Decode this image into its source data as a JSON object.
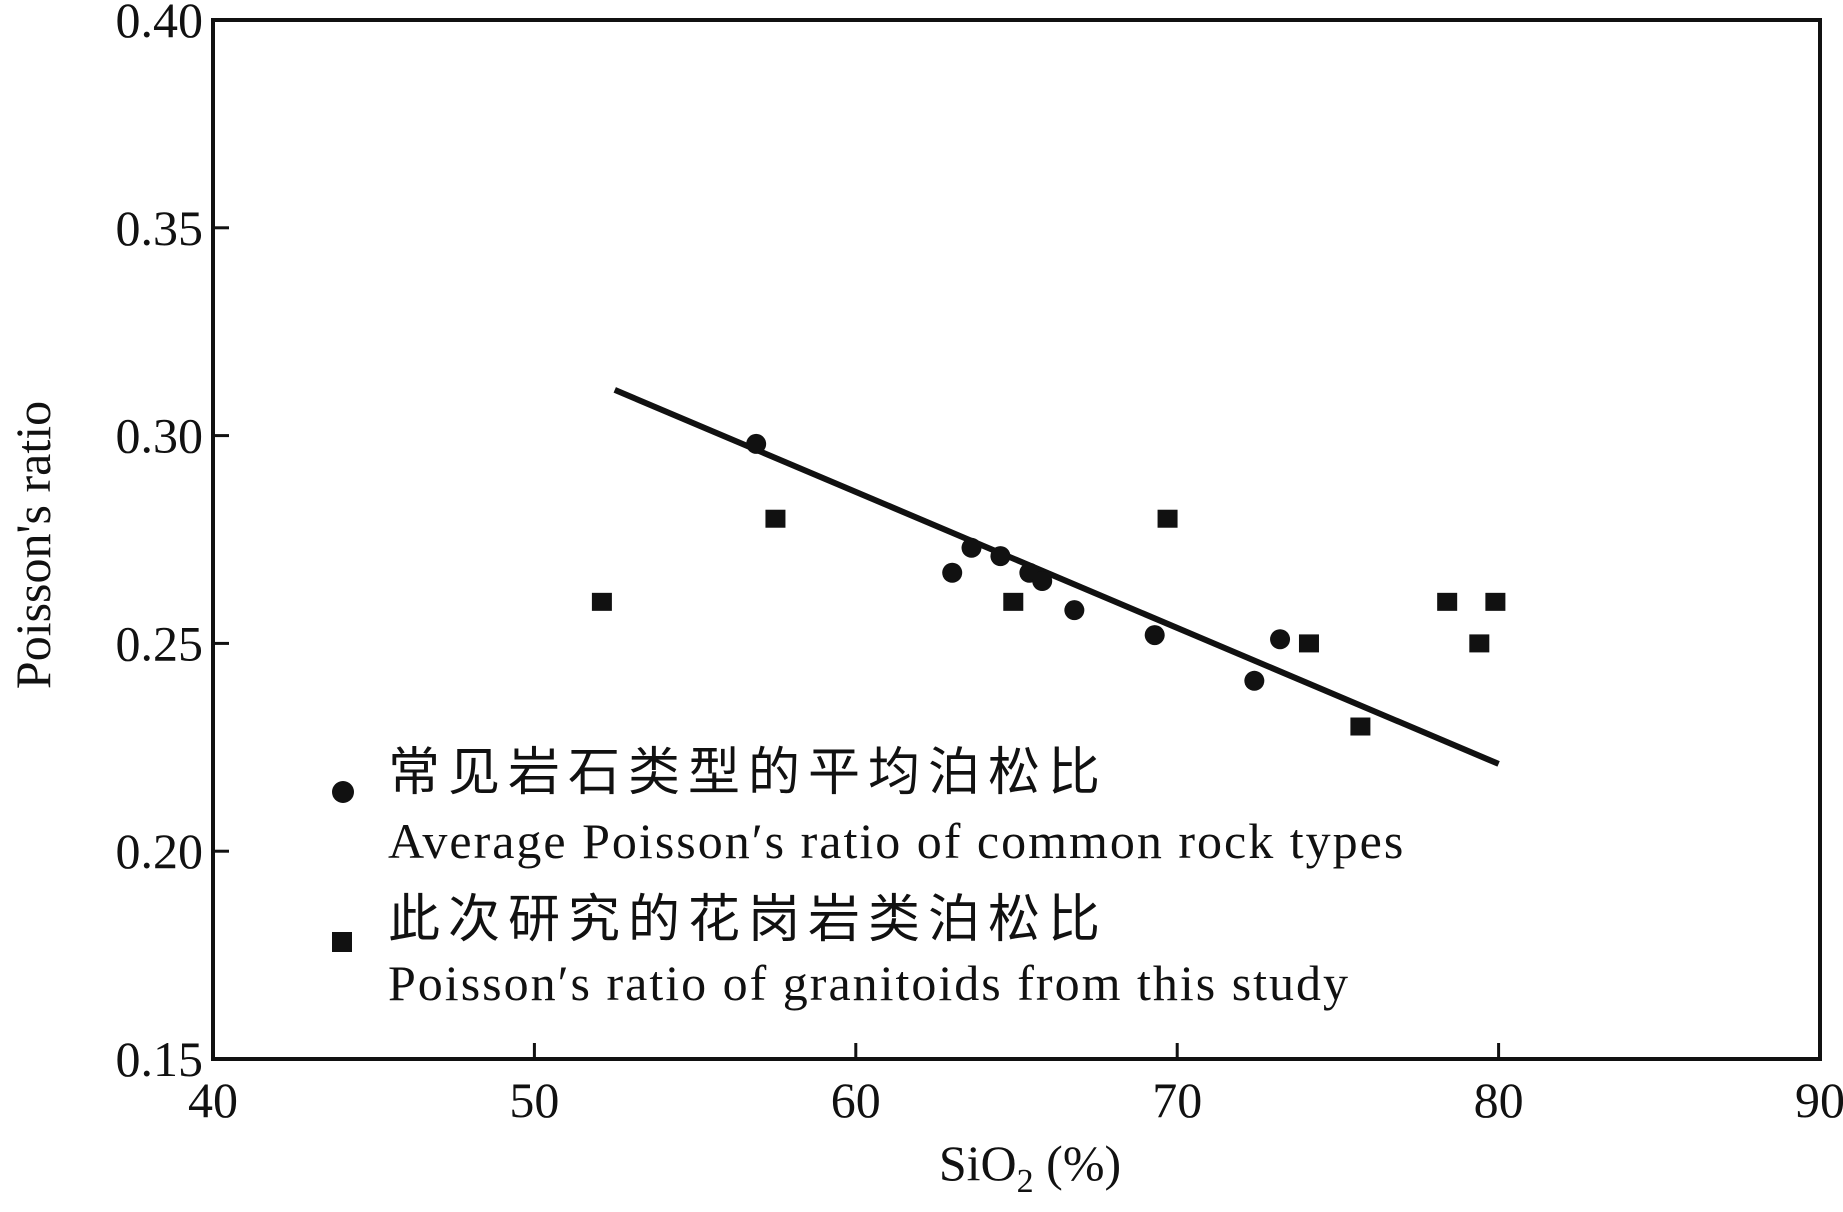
{
  "chart_data": {
    "type": "scatter",
    "title": "",
    "xlabel": {
      "prefix": "SiO",
      "subscript": "2",
      "suffix": " (%)"
    },
    "ylabel": "Poisson's ratio",
    "xlim": [
      40,
      90
    ],
    "ylim": [
      0.15,
      0.4
    ],
    "x_ticks": [
      40,
      50,
      60,
      70,
      80,
      90
    ],
    "y_ticks": [
      0.15,
      0.2,
      0.25,
      0.3,
      0.35,
      0.4
    ],
    "x_tick_labels": [
      "40",
      "50",
      "60",
      "70",
      "80",
      "90"
    ],
    "y_tick_labels": [
      "0.15",
      "0.20",
      "0.25",
      "0.30",
      "0.35",
      "0.40"
    ],
    "grid": false,
    "legend_position": "bottom-left inside plot",
    "series": [
      {
        "name": "常见岩石类型的平均泊松比 / Average Poisson′s ratio of common rock types",
        "marker": "circle",
        "color": "#111111",
        "points": [
          [
            56.9,
            0.298
          ],
          [
            63.0,
            0.267
          ],
          [
            63.6,
            0.273
          ],
          [
            64.5,
            0.271
          ],
          [
            65.4,
            0.267
          ],
          [
            65.8,
            0.265
          ],
          [
            66.8,
            0.258
          ],
          [
            69.3,
            0.252
          ],
          [
            72.4,
            0.241
          ],
          [
            73.2,
            0.251
          ]
        ]
      },
      {
        "name": "此次研究的花岗岩类泊松比 / Poisson′s ratio of granitoids from this study",
        "marker": "square",
        "color": "#111111",
        "points": [
          [
            52.1,
            0.26
          ],
          [
            57.5,
            0.28
          ],
          [
            64.9,
            0.26
          ],
          [
            69.7,
            0.28
          ],
          [
            74.1,
            0.25
          ],
          [
            75.7,
            0.23
          ],
          [
            78.4,
            0.26
          ],
          [
            79.4,
            0.25
          ],
          [
            79.9,
            0.26
          ]
        ]
      }
    ],
    "trend_line": {
      "from": [
        52.5,
        0.311
      ],
      "to": [
        80.0,
        0.221
      ],
      "color": "#111111"
    }
  },
  "legend": {
    "items": [
      {
        "marker": "circle",
        "label_cn": "常见岩石类型的平均泊松比",
        "label_en": "Average Poisson′s ratio of common rock types"
      },
      {
        "marker": "square",
        "label_cn": "此次研究的花岗岩类泊松比",
        "label_en": "Poisson′s ratio of granitoids from this study"
      }
    ]
  },
  "colors": {
    "ink": "#111111",
    "background": "#ffffff"
  }
}
